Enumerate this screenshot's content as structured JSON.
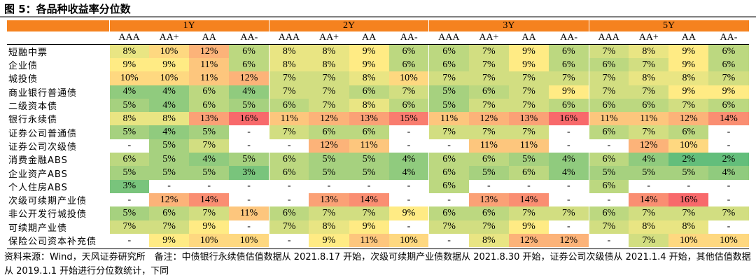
{
  "title": "图 5：各品种收益率分位数",
  "note": "资料来源：Wind，天风证券研究所　备注：中债银行永续债估值数据从 2021.8.17 开始，次级可续期产业债数据从 2021.8.30 开始，证券公司次级债从 2021.1.4 开始，其他估值数据从 2019.1.1 开始进行分位数统计，下同",
  "colors": {
    "header": "#f5821f",
    "scale_low": "#63be7b",
    "scale_mid": "#ffeb84",
    "scale_high": "#f8696b"
  },
  "chart_data": {
    "type": "heatmap",
    "title": "各品种收益率分位数",
    "tenors": [
      "1Y",
      "2Y",
      "3Y",
      "5Y"
    ],
    "ratings": [
      "AAA",
      "AA+",
      "AA",
      "AA-"
    ],
    "rows": [
      {
        "name": "短融中票",
        "values": [
          [
            8,
            10,
            12,
            6
          ],
          [
            8,
            8,
            9,
            6
          ],
          [
            6,
            7,
            9,
            6
          ],
          [
            7,
            8,
            9,
            6
          ]
        ]
      },
      {
        "name": "企业债",
        "values": [
          [
            9,
            9,
            11,
            6
          ],
          [
            8,
            8,
            9,
            6
          ],
          [
            6,
            7,
            9,
            6
          ],
          [
            6,
            7,
            9,
            6
          ]
        ]
      },
      {
        "name": "城投债",
        "values": [
          [
            10,
            10,
            11,
            12
          ],
          [
            7,
            7,
            8,
            10
          ],
          [
            7,
            7,
            7,
            7
          ],
          [
            7,
            8,
            8,
            7
          ]
        ]
      },
      {
        "name": "商业银行普通债",
        "values": [
          [
            4,
            4,
            6,
            4
          ],
          [
            7,
            7,
            6,
            7
          ],
          [
            5,
            6,
            7,
            9
          ],
          [
            7,
            7,
            9,
            9
          ]
        ]
      },
      {
        "name": "二级资本债",
        "values": [
          [
            5,
            4,
            6,
            5
          ],
          [
            6,
            7,
            8,
            6
          ],
          [
            5,
            7,
            7,
            6
          ],
          [
            6,
            6,
            7,
            6
          ]
        ]
      },
      {
        "name": "银行永续债",
        "values": [
          [
            8,
            8,
            13,
            16
          ],
          [
            11,
            12,
            13,
            15
          ],
          [
            11,
            12,
            13,
            16
          ],
          [
            11,
            11,
            12,
            14
          ]
        ]
      },
      {
        "name": "证券公司普通债",
        "values": [
          [
            5,
            4,
            5,
            null
          ],
          [
            7,
            6,
            6,
            null
          ],
          [
            7,
            7,
            7,
            null
          ],
          [
            6,
            7,
            6,
            null
          ]
        ]
      },
      {
        "name": "证券公司次级债",
        "values": [
          [
            null,
            5,
            7,
            null
          ],
          [
            null,
            12,
            11,
            null
          ],
          [
            null,
            11,
            11,
            null
          ],
          [
            null,
            12,
            10,
            null
          ]
        ]
      },
      {
        "name": "消费金融ABS",
        "values": [
          [
            6,
            5,
            4,
            5
          ],
          [
            6,
            5,
            5,
            4
          ],
          [
            6,
            6,
            5,
            4
          ],
          [
            6,
            4,
            2,
            2
          ]
        ]
      },
      {
        "name": "企业资产ABS",
        "values": [
          [
            5,
            5,
            5,
            3
          ],
          [
            6,
            5,
            5,
            4
          ],
          [
            6,
            5,
            6,
            4
          ],
          [
            5,
            5,
            5,
            4
          ]
        ]
      },
      {
        "name": "个人住房ABS",
        "values": [
          [
            3,
            null,
            null,
            null
          ],
          [
            null,
            null,
            null,
            null
          ],
          [
            6,
            null,
            null,
            null
          ],
          [
            6,
            null,
            null,
            null
          ]
        ]
      },
      {
        "name": "次级可续期产业债",
        "values": [
          [
            null,
            12,
            14,
            null
          ],
          [
            null,
            13,
            14,
            null
          ],
          [
            null,
            13,
            14,
            null
          ],
          [
            null,
            14,
            16,
            null
          ]
        ]
      },
      {
        "name": "非公开发行城投债",
        "values": [
          [
            5,
            6,
            7,
            11
          ],
          [
            6,
            7,
            7,
            9
          ],
          [
            6,
            6,
            7,
            7
          ],
          [
            6,
            7,
            7,
            7
          ]
        ]
      },
      {
        "name": "可续期产业债",
        "values": [
          [
            7,
            7,
            9,
            null
          ],
          [
            7,
            8,
            9,
            null
          ],
          [
            7,
            7,
            9,
            null
          ],
          [
            7,
            8,
            8,
            null
          ]
        ]
      },
      {
        "name": "保险公司资本补充债",
        "values": [
          [
            null,
            9,
            10,
            10
          ],
          [
            null,
            9,
            11,
            10
          ],
          [
            null,
            8,
            12,
            12
          ],
          [
            null,
            7,
            10,
            10
          ]
        ]
      }
    ],
    "missing_label": "-",
    "unit": "%",
    "grid": false,
    "legend": "none"
  }
}
